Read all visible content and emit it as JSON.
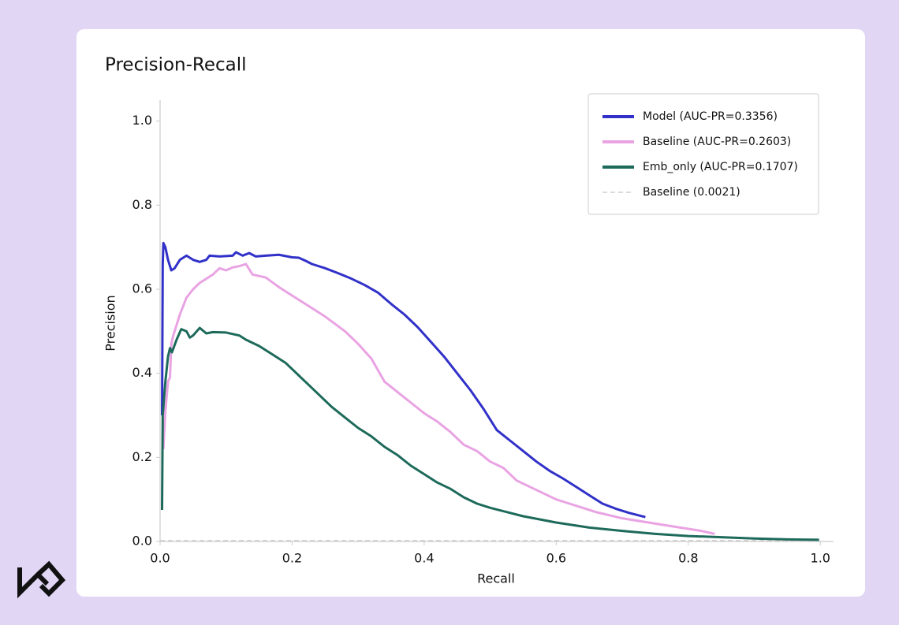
{
  "chart_data": {
    "type": "line",
    "title": "Precision-Recall",
    "xlabel": "Recall",
    "ylabel": "Precision",
    "xlim": [
      0,
      1.02
    ],
    "ylim": [
      0,
      1.05
    ],
    "xticks": [
      {
        "value": 0,
        "label": "0.0"
      },
      0.2,
      0.4,
      0.6,
      0.8,
      {
        "value": 1,
        "label": "1.0"
      }
    ],
    "yticks": [
      {
        "value": 0,
        "label": "0.0"
      },
      0.2,
      0.4,
      0.6,
      0.8,
      {
        "value": 1,
        "label": "1.0"
      }
    ],
    "legend": "upper right",
    "grid": false,
    "series": [
      {
        "name": "Model (AUC-PR=0.3356)",
        "color": "#3131c9",
        "x": [
          0.003,
          0.004,
          0.005,
          0.008,
          0.012,
          0.017,
          0.022,
          0.03,
          0.04,
          0.05,
          0.06,
          0.07,
          0.075,
          0.09,
          0.11,
          0.115,
          0.125,
          0.135,
          0.145,
          0.16,
          0.18,
          0.2,
          0.21,
          0.22,
          0.23,
          0.25,
          0.27,
          0.29,
          0.31,
          0.33,
          0.35,
          0.37,
          0.39,
          0.41,
          0.43,
          0.45,
          0.47,
          0.49,
          0.51,
          0.53,
          0.55,
          0.57,
          0.59,
          0.61,
          0.63,
          0.65,
          0.67,
          0.69,
          0.71,
          0.735
        ],
        "values": [
          0.3,
          0.66,
          0.71,
          0.7,
          0.67,
          0.645,
          0.65,
          0.67,
          0.68,
          0.67,
          0.665,
          0.67,
          0.68,
          0.678,
          0.68,
          0.688,
          0.68,
          0.686,
          0.678,
          0.68,
          0.682,
          0.676,
          0.675,
          0.668,
          0.66,
          0.65,
          0.638,
          0.625,
          0.61,
          0.592,
          0.565,
          0.54,
          0.51,
          0.475,
          0.44,
          0.4,
          0.36,
          0.315,
          0.265,
          0.24,
          0.215,
          0.19,
          0.168,
          0.15,
          0.13,
          0.11,
          0.09,
          0.078,
          0.068,
          0.058
        ]
      },
      {
        "name": "Baseline (AUC-PR=0.2603)",
        "color": "#e9a3e3",
        "x": [
          0.005,
          0.008,
          0.012,
          0.015,
          0.017,
          0.02,
          0.03,
          0.04,
          0.05,
          0.06,
          0.07,
          0.08,
          0.09,
          0.1,
          0.11,
          0.12,
          0.13,
          0.14,
          0.16,
          0.18,
          0.2,
          0.22,
          0.25,
          0.28,
          0.3,
          0.32,
          0.34,
          0.36,
          0.38,
          0.4,
          0.42,
          0.44,
          0.46,
          0.48,
          0.5,
          0.52,
          0.54,
          0.56,
          0.58,
          0.6,
          0.62,
          0.64,
          0.66,
          0.7,
          0.74,
          0.78,
          0.82,
          0.84
        ],
        "values": [
          0.22,
          0.31,
          0.38,
          0.39,
          0.47,
          0.49,
          0.54,
          0.58,
          0.6,
          0.615,
          0.625,
          0.635,
          0.65,
          0.645,
          0.652,
          0.655,
          0.66,
          0.635,
          0.628,
          0.605,
          0.585,
          0.565,
          0.535,
          0.5,
          0.47,
          0.435,
          0.38,
          0.355,
          0.33,
          0.305,
          0.285,
          0.26,
          0.23,
          0.215,
          0.19,
          0.175,
          0.145,
          0.13,
          0.115,
          0.1,
          0.09,
          0.08,
          0.07,
          0.055,
          0.045,
          0.035,
          0.025,
          0.018
        ]
      },
      {
        "name": "Emb_only (AUC-PR=0.1707)",
        "color": "#1d6a5b",
        "x": [
          0.003,
          0.004,
          0.008,
          0.012,
          0.015,
          0.018,
          0.025,
          0.032,
          0.04,
          0.045,
          0.05,
          0.06,
          0.07,
          0.08,
          0.1,
          0.12,
          0.13,
          0.15,
          0.17,
          0.19,
          0.2,
          0.22,
          0.24,
          0.26,
          0.28,
          0.3,
          0.32,
          0.34,
          0.36,
          0.38,
          0.4,
          0.42,
          0.44,
          0.46,
          0.48,
          0.5,
          0.55,
          0.6,
          0.65,
          0.7,
          0.75,
          0.8,
          0.85,
          0.9,
          0.95,
          0.998
        ],
        "values": [
          0.075,
          0.3,
          0.38,
          0.44,
          0.46,
          0.45,
          0.48,
          0.505,
          0.5,
          0.485,
          0.49,
          0.508,
          0.495,
          0.498,
          0.497,
          0.49,
          0.48,
          0.465,
          0.445,
          0.425,
          0.41,
          0.38,
          0.35,
          0.32,
          0.295,
          0.27,
          0.25,
          0.225,
          0.205,
          0.18,
          0.16,
          0.14,
          0.125,
          0.105,
          0.09,
          0.08,
          0.06,
          0.045,
          0.033,
          0.025,
          0.018,
          0.013,
          0.01,
          0.007,
          0.005,
          0.004
        ]
      },
      {
        "name": "Baseline (0.0021)",
        "color": "#cfcfcf",
        "dash": true,
        "x": [
          0,
          1
        ],
        "values": [
          0.0021,
          0.0021
        ]
      }
    ]
  }
}
